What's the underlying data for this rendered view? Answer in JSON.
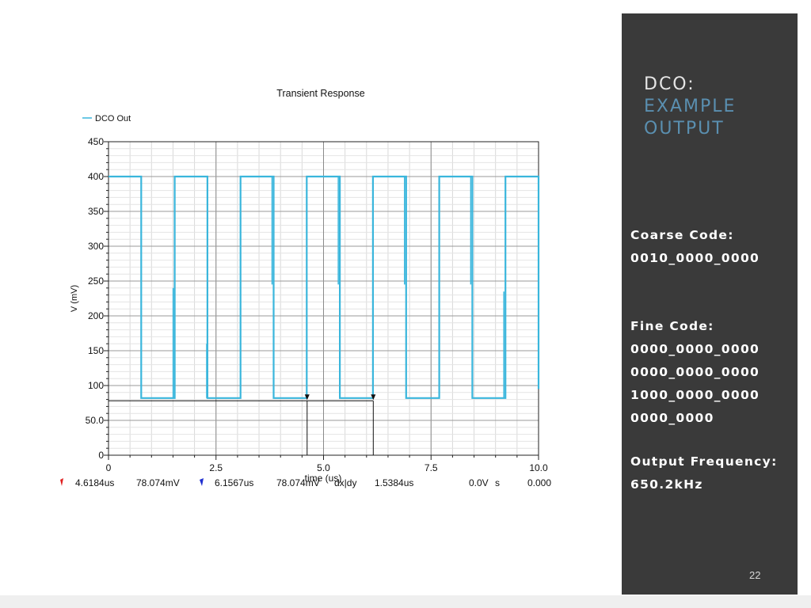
{
  "slide": {
    "page_number": "22",
    "title_line1": "DCO:",
    "title_line2": "EXAMPLE",
    "title_line3": "OUTPUT",
    "coarse_label": "Coarse Code:",
    "coarse_value": "0010_0000_0000",
    "fine_label": "Fine Code:",
    "fine_values": [
      "0000_0000_0000",
      "0000_0000_0000",
      "1000_0000_0000",
      "0000_0000"
    ],
    "freq_label": "Output Frequency:",
    "freq_value": "650.2kHz",
    "colors": {
      "panel_bg": "#3a3a3a",
      "title_accent": "#5a8fb0",
      "trace": "#3ab6dc"
    }
  },
  "chart_data": {
    "type": "line",
    "title": "Transient Response",
    "xlabel": "time (us)",
    "ylabel": "V (mV)",
    "xlim": [
      0,
      10.0
    ],
    "ylim": [
      0,
      450
    ],
    "x_ticks": [
      "0",
      "2.5",
      "5.0",
      "7.5",
      "10.0"
    ],
    "y_ticks": [
      "0",
      "50.0",
      "100",
      "150",
      "200",
      "250",
      "300",
      "350",
      "400",
      "450"
    ],
    "grid": true,
    "legend_position": "top-left",
    "series": [
      {
        "name": "DCO Out",
        "high_mV": 400,
        "low_mV": 82,
        "x": [
          0.0,
          0.76,
          0.76,
          1.54,
          1.54,
          2.3,
          2.3,
          3.07,
          3.07,
          3.84,
          3.84,
          4.61,
          4.61,
          5.38,
          5.38,
          6.15,
          6.15,
          6.92,
          6.92,
          7.69,
          7.69,
          8.46,
          8.46,
          9.23,
          9.23,
          10.0,
          10.0
        ],
        "y": [
          400,
          400,
          82,
          82,
          400,
          400,
          82,
          82,
          400,
          400,
          82,
          82,
          400,
          400,
          82,
          82,
          400,
          400,
          82,
          82,
          400,
          400,
          82,
          82,
          400,
          400,
          95
        ]
      }
    ],
    "markers": {
      "level_mV": 78.074,
      "m1_x_us": 4.6184,
      "m2_x_us": 6.1567,
      "m1_time": "4.6184us",
      "m1_value": "78.074mV",
      "m2_time": "6.1567us",
      "m2_value": "78.074mV",
      "delta_label": "dx|dy",
      "delta_x": "1.5384us",
      "delta_y": "0.0V",
      "slope_unit": "s",
      "slope_value": "0.000"
    }
  }
}
